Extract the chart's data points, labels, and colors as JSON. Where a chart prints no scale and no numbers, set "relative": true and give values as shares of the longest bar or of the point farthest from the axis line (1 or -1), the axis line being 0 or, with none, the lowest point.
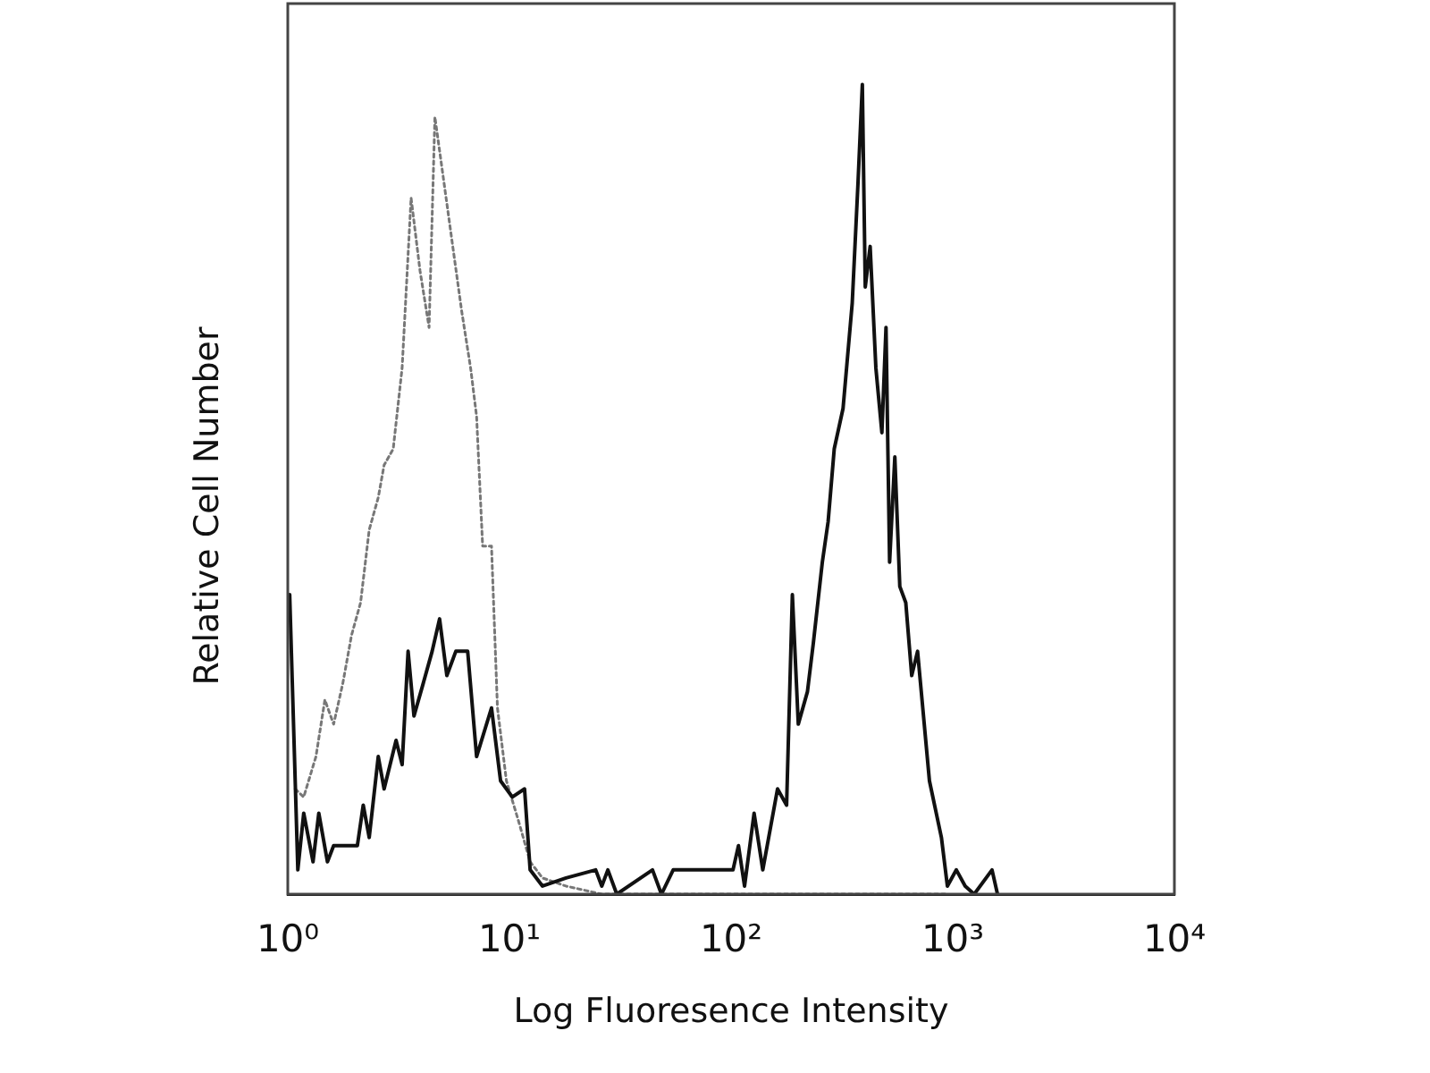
{
  "chart_data": {
    "type": "line",
    "xlabel": "Log Fluoresence Intensity",
    "ylabel": "Relative Cell Number",
    "relative": true,
    "log": "x",
    "xlim": [
      1,
      10000
    ],
    "xticks": [
      {
        "value": 1,
        "label": "10⁰"
      },
      {
        "value": 10,
        "label": "10¹"
      },
      {
        "value": 100,
        "label": "10²"
      },
      {
        "value": 1000,
        "label": "10³"
      },
      {
        "value": 10000,
        "label": "10⁴"
      }
    ],
    "series": [
      {
        "color": "#111111",
        "line_style": "solid",
        "x": [
          1.02,
          1.11,
          1.18,
          1.3,
          1.38,
          1.51,
          1.61,
          2.06,
          2.19,
          2.33,
          2.56,
          2.72,
          3.08,
          3.28,
          3.49,
          3.71,
          4.08,
          4.48,
          4.84,
          5.22,
          5.73,
          6.48,
          7.11,
          8.3,
          9.12,
          10.3,
          11.7,
          12.4,
          14.1,
          18.0,
          24.5,
          26.1,
          27.8,
          30.5,
          44.2,
          48.5,
          54.8,
          84.5,
          102,
          108,
          115,
          127,
          139,
          162,
          178,
          189,
          201,
          221,
          235,
          258,
          274,
          292,
          320,
          352,
          374,
          391,
          403,
          424,
          450,
          479,
          500,
          519,
          548,
          577,
          614,
          653,
          694,
          785,
          889,
          946,
          1038,
          1138,
          1250,
          1504,
          1592
        ],
        "values": [
          0.37,
          0.03,
          0.1,
          0.04,
          0.1,
          0.04,
          0.06,
          0.06,
          0.11,
          0.07,
          0.17,
          0.13,
          0.19,
          0.16,
          0.3,
          0.22,
          0.26,
          0.3,
          0.34,
          0.27,
          0.3,
          0.3,
          0.17,
          0.23,
          0.14,
          0.12,
          0.13,
          0.03,
          0.01,
          0.02,
          0.03,
          0.01,
          0.03,
          0,
          0.03,
          0,
          0.03,
          0.03,
          0.03,
          0.06,
          0.01,
          0.1,
          0.03,
          0.13,
          0.11,
          0.37,
          0.21,
          0.25,
          0.31,
          0.41,
          0.46,
          0.55,
          0.6,
          0.73,
          0.88,
          1,
          0.75,
          0.8,
          0.65,
          0.57,
          0.7,
          0.41,
          0.54,
          0.38,
          0.36,
          0.27,
          0.3,
          0.14,
          0.07,
          0.01,
          0.03,
          0.01,
          0,
          0.03,
          0
        ]
      },
      {
        "color": "#777777",
        "line_style": "dotted",
        "x": [
          1.08,
          1.18,
          1.34,
          1.47,
          1.61,
          1.77,
          1.94,
          2.13,
          2.33,
          2.56,
          2.72,
          2.99,
          3.28,
          3.6,
          3.95,
          4.34,
          4.61,
          5.06,
          5.55,
          6.09,
          6.68,
          7.11,
          7.57,
          8.3,
          8.83,
          9.69,
          11.0,
          12.4,
          14.1,
          18.0,
          26.1,
          946
        ],
        "values": [
          0.13,
          0.12,
          0.17,
          0.24,
          0.21,
          0.26,
          0.32,
          0.36,
          0.45,
          0.49,
          0.53,
          0.55,
          0.65,
          0.86,
          0.77,
          0.7,
          0.96,
          0.88,
          0.8,
          0.72,
          0.65,
          0.59,
          0.43,
          0.43,
          0.23,
          0.14,
          0.09,
          0.04,
          0.02,
          0.01,
          0,
          0
        ]
      }
    ]
  }
}
